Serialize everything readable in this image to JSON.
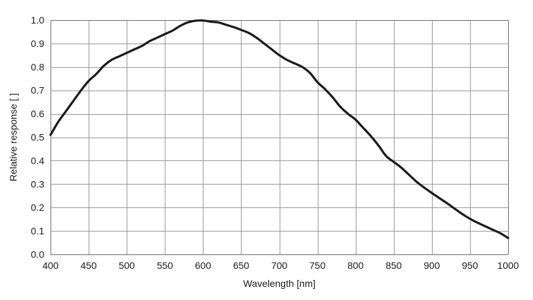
{
  "chart_data": {
    "type": "line",
    "title": "",
    "xlabel": "Wavelength [nm]",
    "ylabel": "Relative response [ ]",
    "xlim": [
      400,
      1000
    ],
    "ylim": [
      0.0,
      1.0
    ],
    "grid": true,
    "x_ticks": [
      400,
      450,
      500,
      550,
      600,
      650,
      700,
      750,
      800,
      850,
      900,
      950,
      1000
    ],
    "x_tick_labels": [
      "400",
      "450",
      "500",
      "550",
      "600",
      "650",
      "700",
      "750",
      "800",
      "850",
      "900",
      "950",
      "1000"
    ],
    "y_ticks": [
      0.0,
      0.1,
      0.2,
      0.3,
      0.4,
      0.5,
      0.6,
      0.7,
      0.8,
      0.9,
      1.0
    ],
    "y_tick_labels": [
      "0.0",
      "0.1",
      "0.2",
      "0.3",
      "0.4",
      "0.5",
      "0.6",
      "0.7",
      "0.8",
      "0.9",
      "1.0"
    ],
    "line_color": "#1a1a1a",
    "grid_color": "#9a9a9a",
    "series": [
      {
        "x": [
          400,
          410,
          420,
          430,
          440,
          450,
          460,
          470,
          480,
          490,
          500,
          510,
          520,
          530,
          540,
          550,
          560,
          570,
          580,
          590,
          600,
          610,
          620,
          630,
          640,
          650,
          660,
          670,
          680,
          690,
          700,
          710,
          720,
          730,
          740,
          750,
          760,
          770,
          780,
          790,
          800,
          810,
          820,
          830,
          840,
          850,
          860,
          870,
          880,
          890,
          900,
          910,
          920,
          930,
          940,
          950,
          960,
          970,
          980,
          990,
          1000
        ],
        "y": [
          0.51,
          0.565,
          0.61,
          0.655,
          0.7,
          0.74,
          0.77,
          0.805,
          0.83,
          0.845,
          0.86,
          0.875,
          0.89,
          0.91,
          0.925,
          0.94,
          0.955,
          0.975,
          0.99,
          0.997,
          0.998,
          0.993,
          0.99,
          0.98,
          0.97,
          0.958,
          0.945,
          0.925,
          0.9,
          0.875,
          0.85,
          0.83,
          0.815,
          0.8,
          0.775,
          0.735,
          0.705,
          0.67,
          0.63,
          0.6,
          0.575,
          0.54,
          0.505,
          0.465,
          0.42,
          0.395,
          0.37,
          0.34,
          0.31,
          0.285,
          0.262,
          0.24,
          0.218,
          0.195,
          0.172,
          0.152,
          0.135,
          0.12,
          0.105,
          0.09,
          0.07
        ]
      }
    ]
  }
}
